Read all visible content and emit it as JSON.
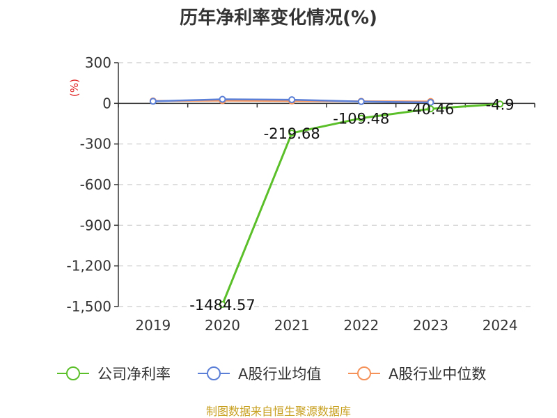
{
  "chart_data": {
    "type": "line",
    "title": "历年净利率变化情况(%)",
    "ylabel": "(%)",
    "xlabel": "",
    "categories": [
      "2019",
      "2020",
      "2021",
      "2022",
      "2023",
      "2024"
    ],
    "yticks": [
      "300",
      "0",
      "-300",
      "-600",
      "-900",
      "-1,200",
      "-1,500"
    ],
    "ytick_values": [
      300,
      0,
      -300,
      -600,
      -900,
      -1200,
      -1500
    ],
    "ylim": [
      -1500,
      300
    ],
    "grid": true,
    "legend_position": "bottom",
    "series": [
      {
        "name": "公司净利率",
        "color": "#5bbf2a",
        "values": [
          null,
          -1484.57,
          -219.68,
          -109.48,
          -40.46,
          -4.9
        ],
        "labels": [
          null,
          "-1484.57",
          "-219.68",
          "-109.48",
          "-40.46",
          "-4.9"
        ]
      },
      {
        "name": "A股行业均值",
        "color": "#5b7fd6",
        "values": [
          15,
          30,
          27,
          13,
          7,
          null
        ]
      },
      {
        "name": "A股行业中位数",
        "color": "#f5925a",
        "values": [
          18,
          20,
          17,
          15,
          14,
          null
        ]
      }
    ]
  },
  "source": "制图数据来自恒生聚源数据库"
}
